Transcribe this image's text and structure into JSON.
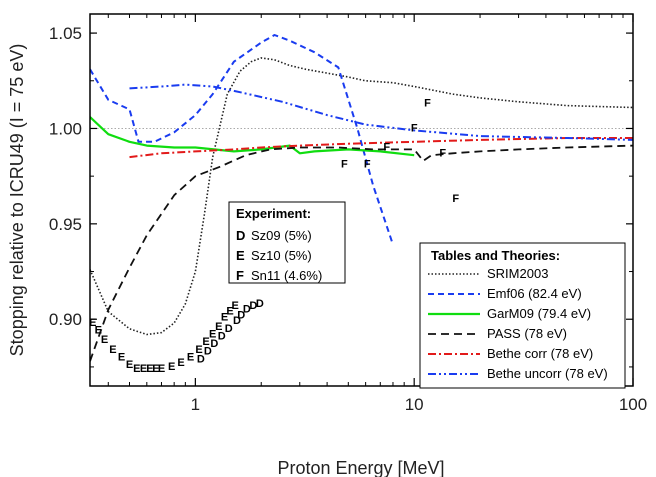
{
  "chart_data": {
    "type": "line",
    "xlabel": "Proton Energy [MeV]",
    "ylabel": "Stopping relative to ICRU49 (I = 75 eV)",
    "xscale": "log",
    "xlim": [
      0.33,
      100
    ],
    "ylim": [
      0.865,
      1.06
    ],
    "xticks": [
      1,
      10,
      100
    ],
    "xtick_labels": [
      "1",
      "10",
      "100"
    ],
    "yticks": [
      0.9,
      0.95,
      1.0,
      1.05
    ],
    "ytick_labels": [
      "0.90",
      "0.95",
      "1.00",
      "1.05"
    ],
    "reference_line": {
      "y": 1.0,
      "color": "#aaaaaa",
      "style": "dotted"
    },
    "legend": {
      "title": "Tables and Theories:",
      "placement": "lower-right"
    },
    "series": [
      {
        "name": "SRIM2003",
        "color": "#222222",
        "dash": "1.5,2",
        "width": 1.6,
        "x": [
          0.33,
          0.4,
          0.5,
          0.6,
          0.7,
          0.8,
          0.9,
          1.0,
          1.1,
          1.2,
          1.4,
          1.6,
          1.8,
          2.0,
          2.3,
          2.7,
          3.2,
          4,
          5,
          6,
          8,
          10,
          15,
          20,
          30,
          50,
          100
        ],
        "y": [
          0.926,
          0.904,
          0.895,
          0.892,
          0.893,
          0.898,
          0.908,
          0.925,
          0.955,
          0.985,
          1.018,
          1.03,
          1.035,
          1.037,
          1.036,
          1.033,
          1.031,
          1.029,
          1.027,
          1.025,
          1.024,
          1.022,
          1.018,
          1.016,
          1.014,
          1.012,
          1.011
        ]
      },
      {
        "name": "Emf06 (82.4 eV)",
        "color": "#1a3cf0",
        "dash": "6,4",
        "width": 2,
        "x": [
          0.33,
          0.4,
          0.5,
          0.55,
          0.65,
          0.8,
          1.0,
          1.2,
          1.5,
          2.0,
          2.3,
          2.7,
          3.5,
          4.5,
          5.5,
          6.5,
          8
        ],
        "y": [
          1.031,
          1.015,
          1.01,
          0.993,
          0.993,
          0.998,
          1.007,
          1.018,
          1.035,
          1.045,
          1.049,
          1.046,
          1.04,
          1.032,
          1.0,
          0.97,
          0.939
        ]
      },
      {
        "name": "GarM09 (79.4 eV)",
        "color": "#10dd10",
        "dash": "",
        "width": 2.2,
        "x": [
          0.33,
          0.4,
          0.5,
          0.6,
          0.8,
          1.0,
          1.5,
          2.0,
          2.7,
          3.0,
          3.5,
          5,
          7,
          10
        ],
        "y": [
          1.006,
          0.997,
          0.993,
          0.991,
          0.99,
          0.99,
          0.988,
          0.989,
          0.991,
          0.987,
          0.988,
          0.989,
          0.988,
          0.986
        ]
      },
      {
        "name": "PASS (78 eV)",
        "color": "#111111",
        "dash": "8,5",
        "width": 1.8,
        "x": [
          0.33,
          0.4,
          0.5,
          0.6,
          0.8,
          1.0,
          1.3,
          1.7,
          2.2,
          3.0,
          4.5,
          6.5,
          10,
          11,
          12,
          15,
          20,
          30,
          50,
          100
        ],
        "y": [
          0.878,
          0.905,
          0.927,
          0.944,
          0.965,
          0.975,
          0.98,
          0.986,
          0.989,
          0.99,
          0.99,
          0.989,
          0.989,
          0.983,
          0.986,
          0.987,
          0.988,
          0.989,
          0.99,
          0.991
        ]
      },
      {
        "name": "Bethe corr (78 eV)",
        "color": "#e21a1a",
        "dash": "8,3,2,3",
        "width": 2,
        "x": [
          0.5,
          0.7,
          1.0,
          1.5,
          2,
          3,
          5,
          10,
          20,
          50,
          100
        ],
        "y": [
          0.985,
          0.987,
          0.988,
          0.989,
          0.99,
          0.991,
          0.992,
          0.993,
          0.994,
          0.995,
          0.995
        ]
      },
      {
        "name": "Bethe uncorr (78 eV)",
        "color": "#1a3cf0",
        "dash": "8,3,2,3,2,3",
        "width": 2,
        "x": [
          0.5,
          0.7,
          0.9,
          1.2,
          1.6,
          2.5,
          4,
          6,
          10,
          20,
          50,
          100
        ],
        "y": [
          1.021,
          1.022,
          1.023,
          1.022,
          1.019,
          1.014,
          1.007,
          1.002,
          0.999,
          0.996,
          0.995,
          0.994
        ]
      }
    ],
    "experiments": {
      "title": "Experiment:",
      "entries": [
        {
          "letter": "D",
          "label": "Sz09 (5%)"
        },
        {
          "letter": "E",
          "label": "Sz10 (5%)"
        },
        {
          "letter": "F",
          "label": "Sn11 (4.6%)"
        }
      ]
    },
    "experiment_points": [
      {
        "letter": "E",
        "x": 0.34,
        "y": 0.898
      },
      {
        "letter": "E",
        "x": 0.36,
        "y": 0.894
      },
      {
        "letter": "E",
        "x": 0.385,
        "y": 0.889
      },
      {
        "letter": "E",
        "x": 0.42,
        "y": 0.884
      },
      {
        "letter": "E",
        "x": 0.46,
        "y": 0.88
      },
      {
        "letter": "E",
        "x": 0.5,
        "y": 0.876
      },
      {
        "letter": "E",
        "x": 0.54,
        "y": 0.874
      },
      {
        "letter": "E",
        "x": 0.58,
        "y": 0.874
      },
      {
        "letter": "E",
        "x": 0.62,
        "y": 0.874
      },
      {
        "letter": "E",
        "x": 0.66,
        "y": 0.874
      },
      {
        "letter": "E",
        "x": 0.7,
        "y": 0.874
      },
      {
        "letter": "E",
        "x": 0.78,
        "y": 0.875
      },
      {
        "letter": "E",
        "x": 0.86,
        "y": 0.877
      },
      {
        "letter": "E",
        "x": 0.95,
        "y": 0.88
      },
      {
        "letter": "E",
        "x": 1.04,
        "y": 0.884
      },
      {
        "letter": "E",
        "x": 1.12,
        "y": 0.888
      },
      {
        "letter": "E",
        "x": 1.2,
        "y": 0.892
      },
      {
        "letter": "E",
        "x": 1.28,
        "y": 0.896
      },
      {
        "letter": "E",
        "x": 1.36,
        "y": 0.901
      },
      {
        "letter": "E",
        "x": 1.44,
        "y": 0.904
      },
      {
        "letter": "E",
        "x": 1.52,
        "y": 0.907
      },
      {
        "letter": "D",
        "x": 1.06,
        "y": 0.879
      },
      {
        "letter": "D",
        "x": 1.14,
        "y": 0.883
      },
      {
        "letter": "D",
        "x": 1.22,
        "y": 0.887
      },
      {
        "letter": "D",
        "x": 1.32,
        "y": 0.891
      },
      {
        "letter": "D",
        "x": 1.42,
        "y": 0.895
      },
      {
        "letter": "D",
        "x": 1.55,
        "y": 0.899
      },
      {
        "letter": "D",
        "x": 1.62,
        "y": 0.902
      },
      {
        "letter": "D",
        "x": 1.72,
        "y": 0.905
      },
      {
        "letter": "D",
        "x": 1.84,
        "y": 0.907
      },
      {
        "letter": "D",
        "x": 1.97,
        "y": 0.908
      },
      {
        "letter": "F",
        "x": 4.8,
        "y": 0.981
      },
      {
        "letter": "F",
        "x": 6.1,
        "y": 0.981
      },
      {
        "letter": "F",
        "x": 7.5,
        "y": 0.99
      },
      {
        "letter": "F",
        "x": 10.0,
        "y": 1.0
      },
      {
        "letter": "F",
        "x": 11.5,
        "y": 1.013
      },
      {
        "letter": "F",
        "x": 13.5,
        "y": 0.987
      },
      {
        "letter": "F",
        "x": 15.5,
        "y": 0.963
      }
    ]
  }
}
